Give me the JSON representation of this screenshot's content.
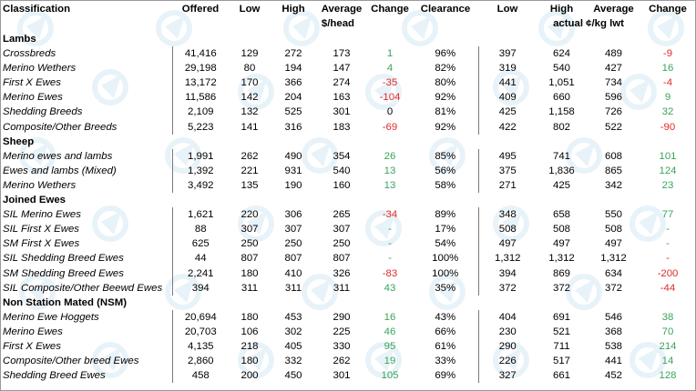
{
  "header": {
    "classification": "Classification",
    "offered": "Offered",
    "low": "Low",
    "high": "High",
    "average": "Average",
    "change": "Change",
    "clearance": "Clearance",
    "low2": "Low",
    "high2": "High",
    "average2": "Average",
    "change2": "Change",
    "unit_head": "$/head",
    "unit_kg": "actual ¢/kg lwt"
  },
  "sections": [
    {
      "title": "Lambs",
      "rows": [
        {
          "name": "Crossbreds",
          "offered": "41,416",
          "low": "129",
          "high": "272",
          "average": "173",
          "change": "1",
          "change_sign": "pos",
          "clearance": "96%",
          "low2": "397",
          "high2": "624",
          "average2": "489",
          "change2": "-9",
          "change2_sign": "neg"
        },
        {
          "name": "Merino Wethers",
          "offered": "29,198",
          "low": "80",
          "high": "194",
          "average": "147",
          "change": "4",
          "change_sign": "pos",
          "clearance": "82%",
          "low2": "319",
          "high2": "540",
          "average2": "427",
          "change2": "16",
          "change2_sign": "pos"
        },
        {
          "name": "First X Ewes",
          "offered": "13,172",
          "low": "170",
          "high": "366",
          "average": "274",
          "change": "-35",
          "change_sign": "neg",
          "clearance": "80%",
          "low2": "441",
          "high2": "1,051",
          "average2": "734",
          "change2": "-4",
          "change2_sign": "neg"
        },
        {
          "name": "Merino Ewes",
          "offered": "11,586",
          "low": "142",
          "high": "204",
          "average": "163",
          "change": "-104",
          "change_sign": "neg",
          "clearance": "92%",
          "low2": "409",
          "high2": "660",
          "average2": "596",
          "change2": "9",
          "change2_sign": "pos"
        },
        {
          "name": "Shedding Breeds",
          "offered": "2,109",
          "low": "132",
          "high": "525",
          "average": "301",
          "change": "0",
          "change_sign": "neu",
          "clearance": "81%",
          "low2": "425",
          "high2": "1,158",
          "average2": "726",
          "change2": "32",
          "change2_sign": "pos"
        },
        {
          "name": "Composite/Other Breeds",
          "offered": "5,223",
          "low": "141",
          "high": "316",
          "average": "183",
          "change": "-69",
          "change_sign": "neg",
          "clearance": "92%",
          "low2": "422",
          "high2": "802",
          "average2": "522",
          "change2": "-90",
          "change2_sign": "neg"
        }
      ]
    },
    {
      "title": "Sheep",
      "rows": [
        {
          "name": "Merino ewes and lambs",
          "offered": "1,991",
          "low": "262",
          "high": "490",
          "average": "354",
          "change": "26",
          "change_sign": "pos",
          "clearance": "85%",
          "low2": "495",
          "high2": "741",
          "average2": "608",
          "change2": "101",
          "change2_sign": "pos"
        },
        {
          "name": "Ewes and lambs (Mixed)",
          "offered": "1,392",
          "low": "221",
          "high": "931",
          "average": "540",
          "change": "13",
          "change_sign": "pos",
          "clearance": "56%",
          "low2": "375",
          "high2": "1,836",
          "average2": "865",
          "change2": "124",
          "change2_sign": "pos"
        },
        {
          "name": "Merino Wethers",
          "offered": "3,492",
          "low": "135",
          "high": "190",
          "average": "160",
          "change": "13",
          "change_sign": "pos",
          "clearance": "58%",
          "low2": "271",
          "high2": "425",
          "average2": "342",
          "change2": "23",
          "change2_sign": "pos"
        }
      ]
    },
    {
      "title": "Joined Ewes",
      "rows": [
        {
          "name": "SIL Merino Ewes",
          "offered": "1,621",
          "low": "220",
          "high": "306",
          "average": "265",
          "change": "-34",
          "change_sign": "neg",
          "clearance": "89%",
          "low2": "348",
          "high2": "658",
          "average2": "550",
          "change2": "77",
          "change2_sign": "pos"
        },
        {
          "name": "SIL First X Ewes",
          "offered": "88",
          "low": "307",
          "high": "307",
          "average": "307",
          "change": "-",
          "change_sign": "pos",
          "clearance": "17%",
          "low2": "508",
          "high2": "508",
          "average2": "508",
          "change2": "-",
          "change2_sign": "pos"
        },
        {
          "name": "SM First X Ewes",
          "offered": "625",
          "low": "250",
          "high": "250",
          "average": "250",
          "change": "-",
          "change_sign": "pos",
          "clearance": "54%",
          "low2": "497",
          "high2": "497",
          "average2": "497",
          "change2": "-",
          "change2_sign": "pos"
        },
        {
          "name": "SIL Shedding Breed Ewes",
          "offered": "44",
          "low": "807",
          "high": "807",
          "average": "807",
          "change": "-",
          "change_sign": "pos",
          "clearance": "100%",
          "low2": "1,312",
          "high2": "1,312",
          "average2": "1,312",
          "change2": "-",
          "change2_sign": "neg"
        },
        {
          "name": "SM Shedding Breed Ewes",
          "offered": "2,241",
          "low": "180",
          "high": "410",
          "average": "326",
          "change": "-83",
          "change_sign": "neg",
          "clearance": "100%",
          "low2": "394",
          "high2": "869",
          "average2": "634",
          "change2": "-200",
          "change2_sign": "neg"
        },
        {
          "name": "SIL Composite/Other Beewd Ewes",
          "offered": "394",
          "low": "311",
          "high": "311",
          "average": "311",
          "change": "43",
          "change_sign": "pos",
          "clearance": "35%",
          "low2": "372",
          "high2": "372",
          "average2": "372",
          "change2": "-44",
          "change2_sign": "neg"
        }
      ]
    },
    {
      "title": "Non Station Mated (NSM)",
      "rows": [
        {
          "name": "Merino Ewe Hoggets",
          "offered": "20,694",
          "low": "180",
          "high": "453",
          "average": "290",
          "change": "16",
          "change_sign": "pos",
          "clearance": "43%",
          "low2": "404",
          "high2": "691",
          "average2": "546",
          "change2": "38",
          "change2_sign": "pos"
        },
        {
          "name": "Merino Ewes",
          "offered": "20,703",
          "low": "106",
          "high": "302",
          "average": "225",
          "change": "46",
          "change_sign": "pos",
          "clearance": "66%",
          "low2": "230",
          "high2": "521",
          "average2": "368",
          "change2": "70",
          "change2_sign": "pos"
        },
        {
          "name": "First X Ewes",
          "offered": "4,135",
          "low": "218",
          "high": "405",
          "average": "330",
          "change": "95",
          "change_sign": "pos",
          "clearance": "61%",
          "low2": "290",
          "high2": "711",
          "average2": "538",
          "change2": "214",
          "change2_sign": "pos"
        },
        {
          "name": "Composite/Other breed Ewes",
          "offered": "2,860",
          "low": "180",
          "high": "332",
          "average": "262",
          "change": "19",
          "change_sign": "pos",
          "clearance": "33%",
          "low2": "226",
          "high2": "517",
          "average2": "441",
          "change2": "14",
          "change2_sign": "pos"
        },
        {
          "name": "Shedding Breed Ewes",
          "offered": "458",
          "low": "200",
          "high": "450",
          "average": "301",
          "change": "105",
          "change_sign": "pos",
          "clearance": "69%",
          "low2": "327",
          "high2": "661",
          "average2": "452",
          "change2": "128",
          "change2_sign": "pos"
        }
      ]
    }
  ],
  "colors": {
    "positive": "#3aa35c",
    "negative": "#e12b2b",
    "watermark": "#d6e9f5"
  },
  "watermark_icon": "logo-watermark-icon"
}
